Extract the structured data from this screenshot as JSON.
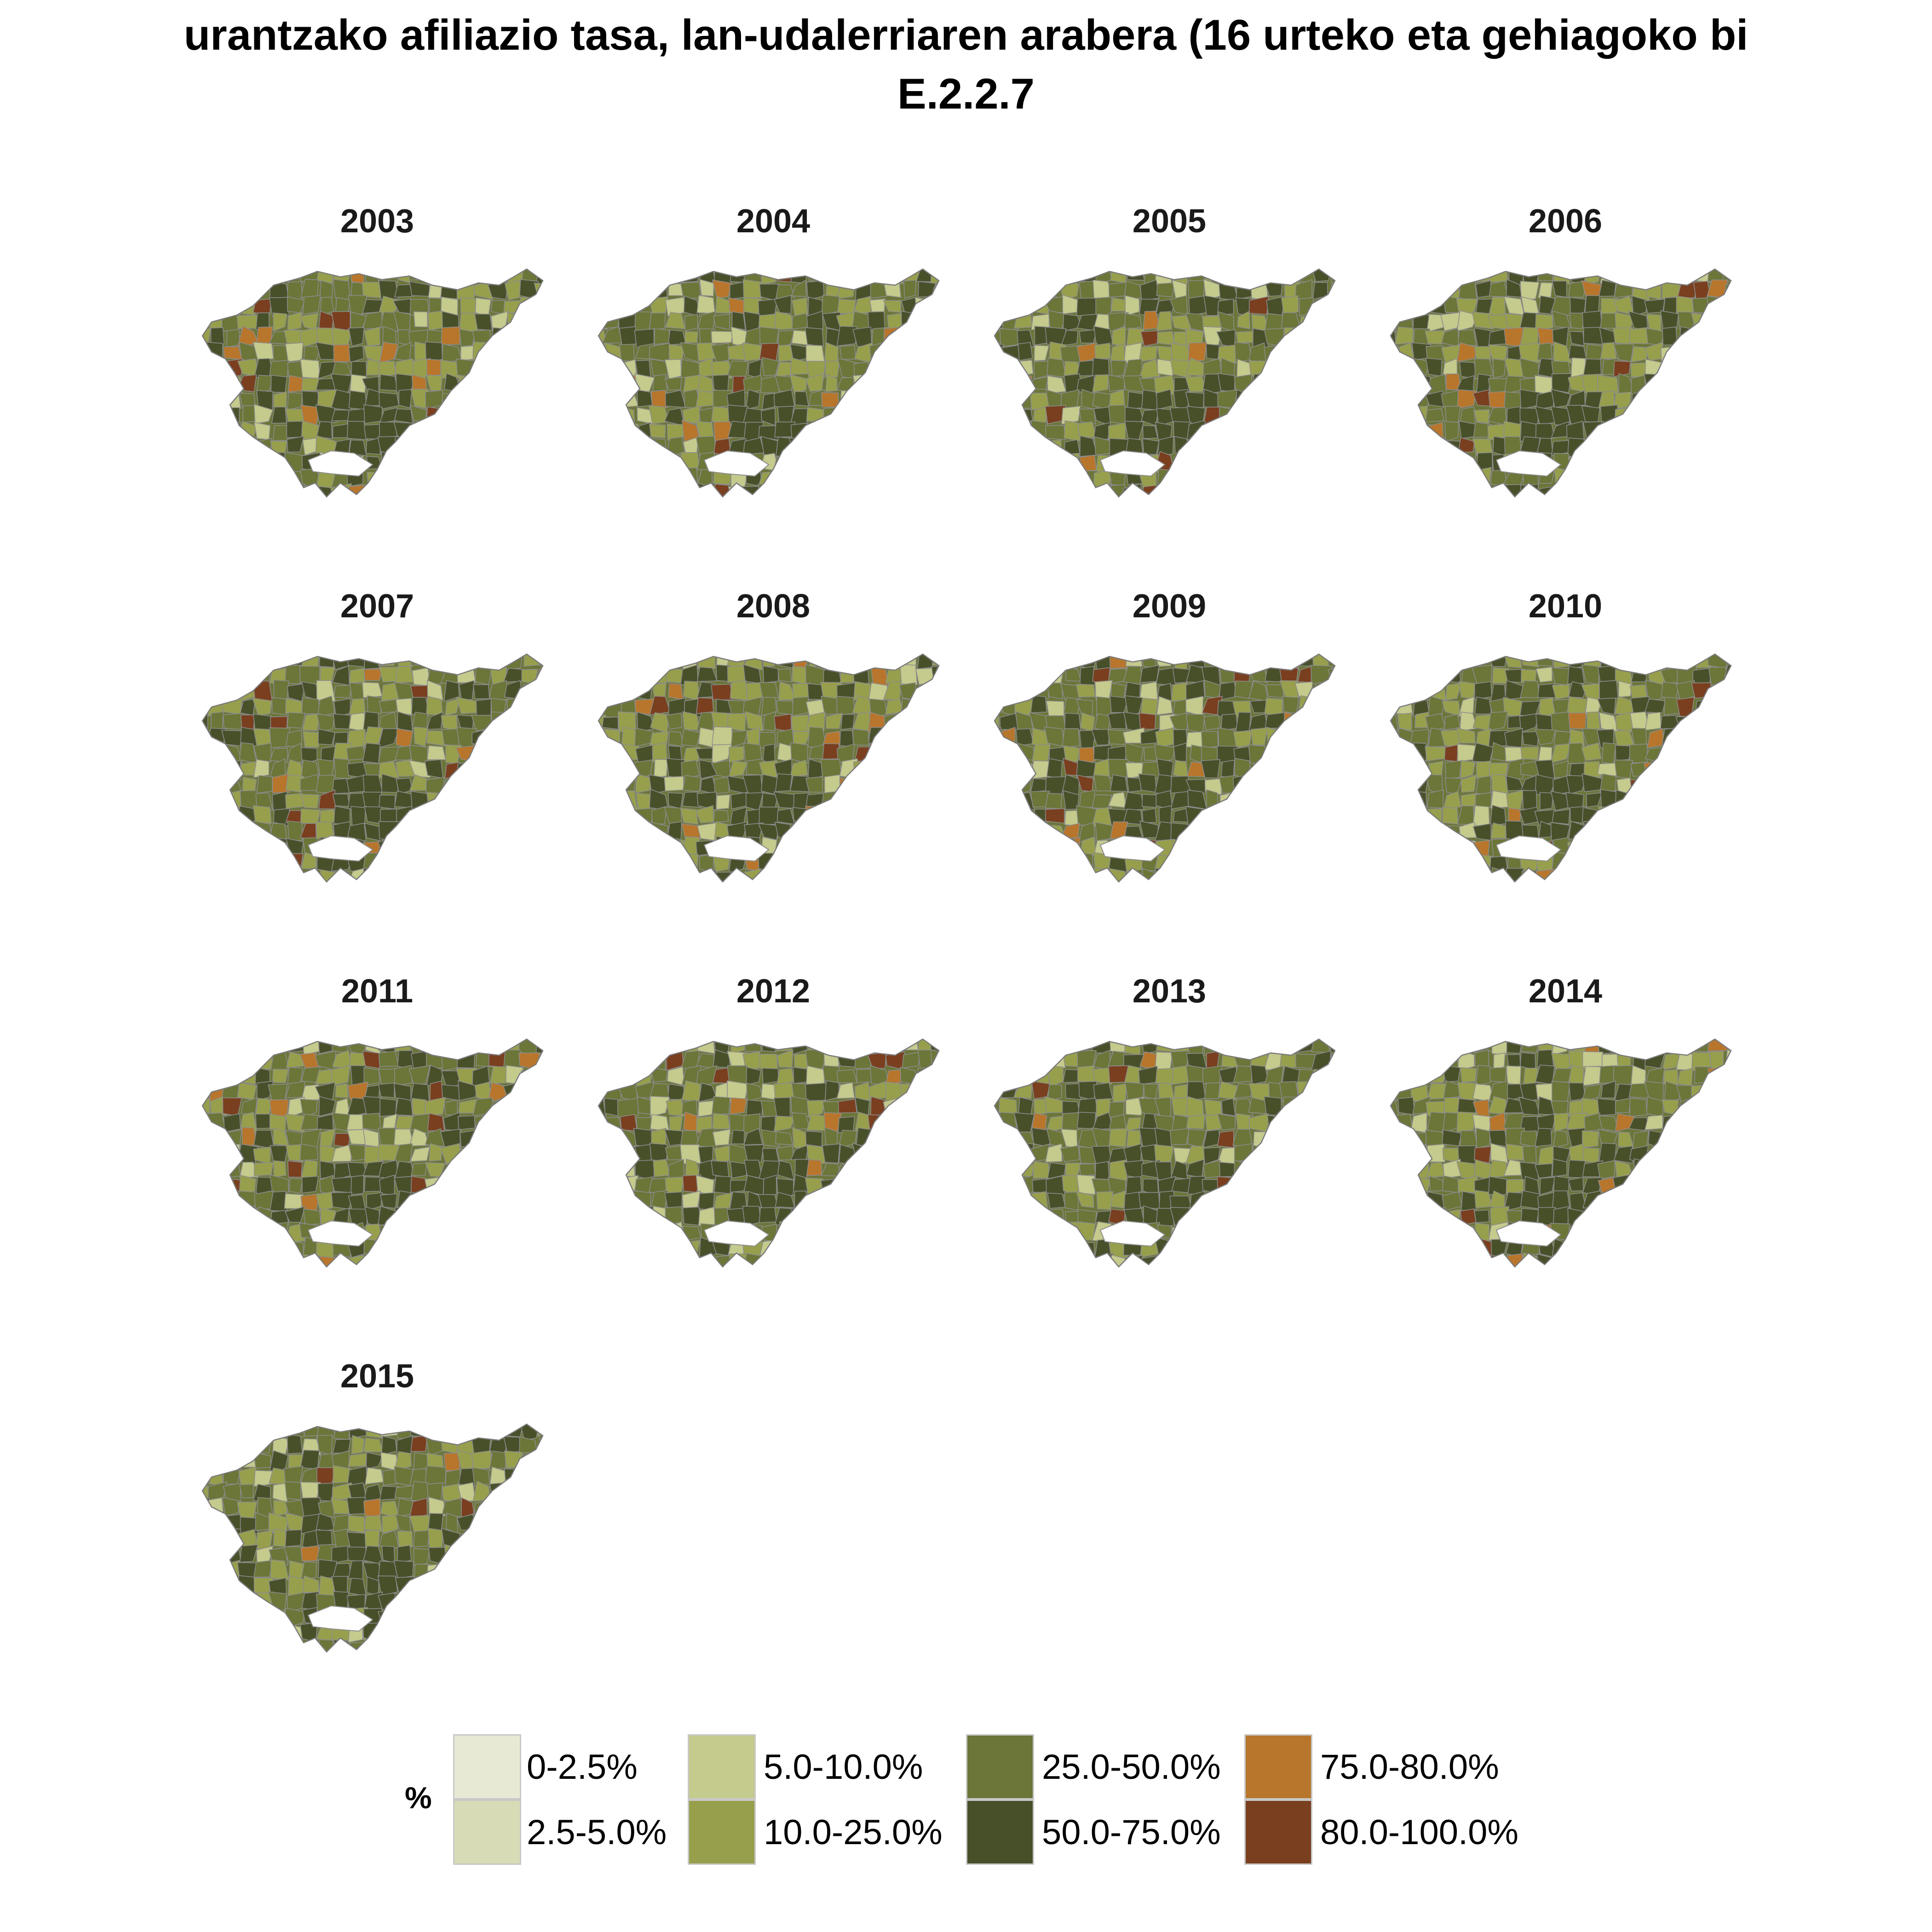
{
  "title": {
    "line1": "urantzako afiliazio tasa, lan-udalerriaren arabera (16 urteko eta gehiagoko bi",
    "line2": "E.2.2.7"
  },
  "legend": {
    "title": "%",
    "items": [
      {
        "label": "0-2.5%",
        "color": "#e8e9d4"
      },
      {
        "label": "2.5-5.0%",
        "color": "#d7dcb6"
      },
      {
        "label": "5.0-10.0%",
        "color": "#c5ca8d"
      },
      {
        "label": "10.0-25.0%",
        "color": "#979f4c"
      },
      {
        "label": "25.0-50.0%",
        "color": "#6b7638"
      },
      {
        "label": "50.0-75.0%",
        "color": "#48502a"
      },
      {
        "label": "75.0-80.0%",
        "color": "#b8762c"
      },
      {
        "label": "80.0-100.0%",
        "color": "#7a3f1f"
      }
    ]
  },
  "panels": [
    {
      "year": "2003"
    },
    {
      "year": "2004"
    },
    {
      "year": "2005"
    },
    {
      "year": "2006"
    },
    {
      "year": "2007"
    },
    {
      "year": "2008"
    },
    {
      "year": "2009"
    },
    {
      "year": "2010"
    },
    {
      "year": "2011"
    },
    {
      "year": "2012"
    },
    {
      "year": "2013"
    },
    {
      "year": "2014"
    },
    {
      "year": "2015"
    }
  ]
}
